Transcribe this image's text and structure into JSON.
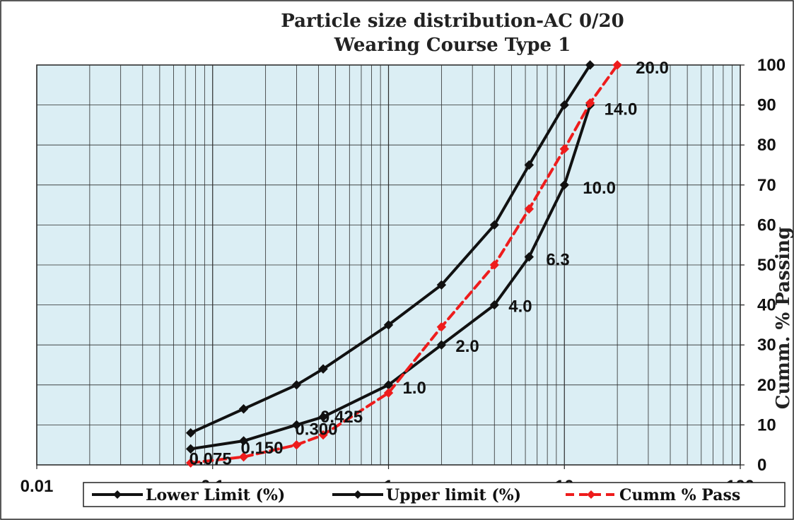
{
  "chart_data": {
    "type": "line",
    "title": [
      "Particle size distribution-AC 0/20",
      "Wearing Course  Type 1"
    ],
    "xlabel": "",
    "ylabel": "Cumm. % Passing",
    "x_scale": "log",
    "xlim": [
      0.01,
      100
    ],
    "ylim": [
      0,
      100
    ],
    "x_tick_labels": [
      "0.01",
      "0.1",
      "1",
      "10",
      "100"
    ],
    "y_tick_labels": [
      "0",
      "10",
      "20",
      "30",
      "40",
      "50",
      "60",
      "70",
      "80",
      "90",
      "100"
    ],
    "grid": true,
    "legend_position": "bottom",
    "plot_background": "#dbeef4",
    "sieve_sizes": [
      0.075,
      0.15,
      0.3,
      0.425,
      1.0,
      2.0,
      4.0,
      6.3,
      10.0,
      14.0,
      20.0
    ],
    "sieve_labels": [
      "0.075",
      "0.150",
      "0.300",
      "0.425",
      "1.0",
      "2.0",
      "4.0",
      "6.3",
      "10.0",
      "14.0",
      "20.0"
    ],
    "series": [
      {
        "name": "Lower Limit (%)",
        "color": "#111111",
        "style": "solid",
        "marker": "diamond",
        "x": [
          0.075,
          0.15,
          0.3,
          0.425,
          1.0,
          2.0,
          4.0,
          6.3,
          10.0,
          14.0
        ],
        "y": [
          4,
          6,
          10,
          12,
          20,
          30,
          40,
          52,
          70,
          90
        ]
      },
      {
        "name": "Upper limit (%)",
        "color": "#111111",
        "style": "solid",
        "marker": "diamond",
        "x": [
          0.075,
          0.15,
          0.3,
          0.425,
          1.0,
          2.0,
          4.0,
          6.3,
          10.0,
          14.0
        ],
        "y": [
          8,
          14,
          20,
          24,
          35,
          45,
          60,
          75,
          90,
          100
        ]
      },
      {
        "name": "Cumm % Pass",
        "color": "#ee1c1c",
        "style": "dashed",
        "marker": "diamond",
        "x": [
          0.075,
          0.15,
          0.3,
          0.425,
          1.0,
          2.0,
          4.0,
          6.3,
          10.0,
          14.0,
          20.0
        ],
        "y": [
          0.5,
          2,
          5,
          7.5,
          18,
          34.5,
          50,
          64,
          79,
          90.5,
          100
        ]
      }
    ]
  }
}
